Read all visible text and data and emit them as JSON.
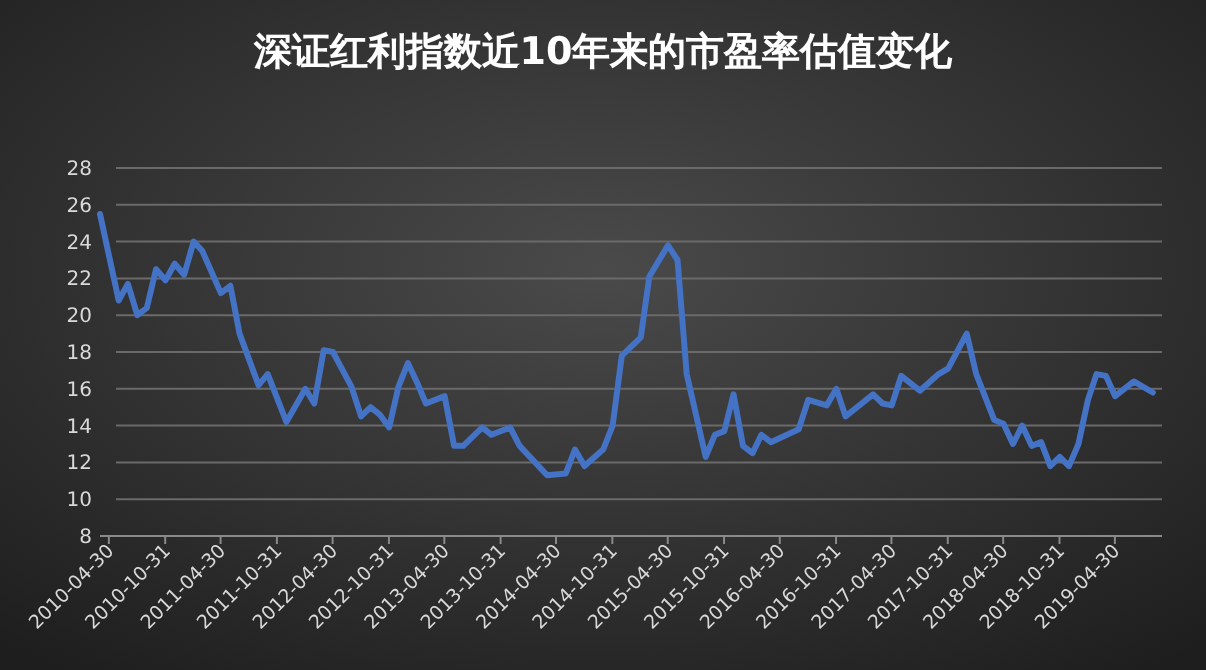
{
  "chart_data": {
    "type": "line",
    "title": "深证红利指数近10年来的市盈率估值变化",
    "x": [
      "2010-04",
      "2010-06",
      "2010-07",
      "2010-08",
      "2010-09",
      "2010-10",
      "2010-11",
      "2010-12",
      "2011-01",
      "2011-02",
      "2011-03",
      "2011-05",
      "2011-06",
      "2011-07",
      "2011-09",
      "2011-10",
      "2011-12",
      "2012-02",
      "2012-03",
      "2012-04",
      "2012-05",
      "2012-07",
      "2012-08",
      "2012-09",
      "2012-10",
      "2012-11",
      "2012-12",
      "2013-01",
      "2013-02",
      "2013-03",
      "2013-05",
      "2013-06",
      "2013-07",
      "2013-09",
      "2013-10",
      "2013-12",
      "2014-01",
      "2014-04",
      "2014-06",
      "2014-07",
      "2014-08",
      "2014-10",
      "2014-11",
      "2014-12",
      "2015-02",
      "2015-03",
      "2015-05",
      "2015-06",
      "2015-07",
      "2015-09",
      "2015-10",
      "2015-11",
      "2015-12",
      "2016-01",
      "2016-02",
      "2016-03",
      "2016-04",
      "2016-07",
      "2016-08",
      "2016-10",
      "2016-11",
      "2016-12",
      "2017-03",
      "2017-04",
      "2017-05",
      "2017-06",
      "2017-08",
      "2017-10",
      "2017-11",
      "2018-01",
      "2018-02",
      "2018-04",
      "2018-05",
      "2018-06",
      "2018-07",
      "2018-08",
      "2018-09",
      "2018-10",
      "2018-11",
      "2018-12",
      "2019-01",
      "2019-02",
      "2019-03",
      "2019-04",
      "2019-05",
      "2019-07",
      "2019-09"
    ],
    "series": [
      {
        "color": "#4472c4",
        "values": [
          25.5,
          20.8,
          21.7,
          20.0,
          20.4,
          22.5,
          21.9,
          22.8,
          22.2,
          24.0,
          23.5,
          21.2,
          21.6,
          19.0,
          16.2,
          16.8,
          14.2,
          16.0,
          15.2,
          18.1,
          18.0,
          16.1,
          14.5,
          15.0,
          14.6,
          13.9,
          16.1,
          17.4,
          16.3,
          15.2,
          15.6,
          12.9,
          12.9,
          13.9,
          13.5,
          13.9,
          12.9,
          11.3,
          11.4,
          12.7,
          11.8,
          12.7,
          14.0,
          17.8,
          18.8,
          22.1,
          23.8,
          23.0,
          16.8,
          12.3,
          13.5,
          13.7,
          15.7,
          12.9,
          12.5,
          13.5,
          13.1,
          13.8,
          15.4,
          15.1,
          16.0,
          14.5,
          15.7,
          15.2,
          15.1,
          16.7,
          15.9,
          16.8,
          17.1,
          19.0,
          16.8,
          14.3,
          14.1,
          13.0,
          14.0,
          12.9,
          13.1,
          11.8,
          12.3,
          11.8,
          13.0,
          15.4,
          16.8,
          16.7,
          15.6,
          16.4,
          15.8
        ]
      }
    ],
    "xlim": [
      "2010-04",
      "2019-10"
    ],
    "xticks": [
      "2010-04-30",
      "2010-10-31",
      "2011-04-30",
      "2011-10-31",
      "2012-04-30",
      "2012-10-31",
      "2013-04-30",
      "2013-10-31",
      "2014-04-30",
      "2014-10-31",
      "2015-04-30",
      "2015-10-31",
      "2016-04-30",
      "2016-10-31",
      "2017-04-30",
      "2017-10-31",
      "2018-04-30",
      "2018-10-31",
      "2019-04-30"
    ],
    "ylim": [
      8,
      28
    ],
    "yticks": [
      8,
      10,
      12,
      14,
      16,
      18,
      20,
      22,
      24,
      26,
      28
    ],
    "grid": "y",
    "marker": "none",
    "line_style": "solid"
  }
}
